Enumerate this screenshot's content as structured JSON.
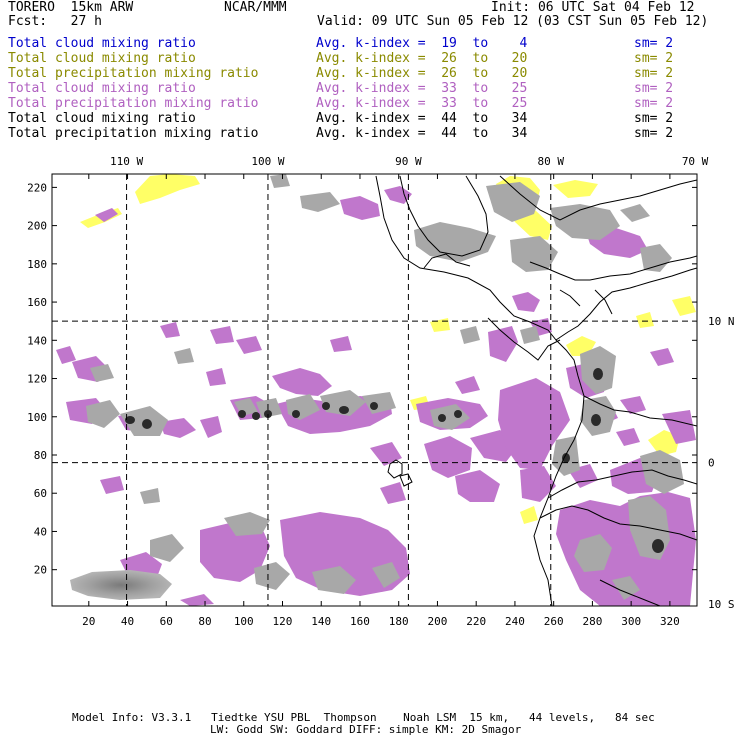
{
  "header": {
    "model": "TORERO  15km ARW",
    "org": "NCAR/MMM",
    "init": "Init: 06 UTC Sat 04 Feb 12",
    "fcst": "Fcst:   27 h",
    "valid": "Valid: 09 UTC Sun 05 Feb 12 (03 CST Sun 05 Feb 12)"
  },
  "legend": [
    {
      "field": "Total cloud mixing ratio",
      "kindex": "Avg. k-index =  19  to    4",
      "sm": "sm= 2",
      "color": "#0000cc"
    },
    {
      "field": "Total cloud mixing ratio",
      "kindex": "Avg. k-index =  26  to   20",
      "sm": "sm= 2",
      "color": "#8a8a00"
    },
    {
      "field": "Total precipitation mixing ratio",
      "kindex": "Avg. k-index =  26  to   20",
      "sm": "sm= 2",
      "color": "#8a8a00"
    },
    {
      "field": "Total cloud mixing ratio",
      "kindex": "Avg. k-index =  33  to   25",
      "sm": "sm= 2",
      "color": "#b060c0"
    },
    {
      "field": "Total precipitation mixing ratio",
      "kindex": "Avg. k-index =  33  to   25",
      "sm": "sm= 2",
      "color": "#b060c0"
    },
    {
      "field": "Total cloud mixing ratio",
      "kindex": "Avg. k-index =  44  to   34",
      "sm": "sm= 2",
      "color": "#000000"
    },
    {
      "field": "Total precipitation mixing ratio",
      "kindex": "Avg. k-index =  44  to   34",
      "sm": "sm= 2",
      "color": "#000000"
    }
  ],
  "axes": {
    "x_grid": [
      20,
      40,
      60,
      80,
      100,
      120,
      140,
      160,
      180,
      200,
      220,
      240,
      260,
      280,
      300,
      320
    ],
    "y_grid": [
      20,
      40,
      60,
      80,
      100,
      120,
      140,
      160,
      180,
      200,
      220
    ],
    "x_range": [
      1,
      334
    ],
    "y_range": [
      1,
      227
    ],
    "lon_labels": [
      "110 W",
      "100 W",
      "90 W",
      "80 W",
      "70 W"
    ],
    "lon_grid_x": [
      39.5,
      112.5,
      185,
      258.5,
      333
    ],
    "lat_labels": [
      "10 N",
      "0",
      "10 S"
    ],
    "lat_grid_y": [
      150,
      76,
      2
    ]
  },
  "colors": {
    "purple": "#c077cc",
    "gray": "#a8a8a8",
    "dark_gray": "#5a5a5a",
    "black_core": "#1a1a1a",
    "yellow": "#ffff66",
    "land": "#000000"
  },
  "footer": {
    "line1": "Model Info: V3.3.1   Tiedtke YSU PBL  Thompson    Noah LSM  15 km,   44 levels,   84 sec",
    "line2": "LW: Godd SW: Goddard DIFF: simple KM: 2D Smagor"
  }
}
